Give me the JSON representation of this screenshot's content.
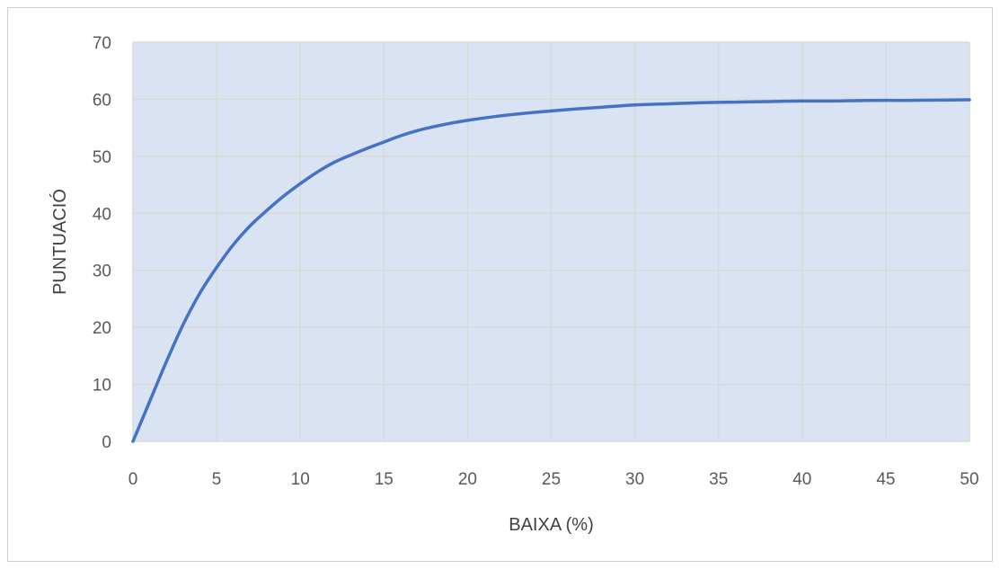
{
  "chart_data": {
    "type": "line",
    "title": "",
    "xlabel": "BAIXA (%)",
    "ylabel": "PUNTUACIÓ",
    "xlim": [
      0,
      50
    ],
    "ylim": [
      0,
      70
    ],
    "x_ticks": [
      0,
      5,
      10,
      15,
      20,
      25,
      30,
      35,
      40,
      45,
      50
    ],
    "y_ticks": [
      0,
      10,
      20,
      30,
      40,
      50,
      60,
      70
    ],
    "grid": true,
    "legend": "none",
    "plot_background": "#dae3f3",
    "gridline_color": "#d9d9d9",
    "series": [
      {
        "color": "#4472c4",
        "x": [
          0,
          1,
          2,
          3,
          4,
          5,
          6,
          7,
          8,
          9,
          10,
          11,
          12,
          13,
          14,
          15,
          16,
          17,
          18,
          19,
          20,
          22,
          24,
          26,
          28,
          30,
          32,
          34,
          36,
          38,
          40,
          42,
          44,
          46,
          48,
          50
        ],
        "y": [
          0,
          7,
          14,
          20.5,
          26,
          30.5,
          34.5,
          37.8,
          40.5,
          43,
          45.2,
          47.2,
          48.9,
          50.2,
          51.4,
          52.5,
          53.6,
          54.5,
          55.2,
          55.8,
          56.3,
          57.1,
          57.7,
          58.2,
          58.6,
          59.0,
          59.2,
          59.4,
          59.5,
          59.6,
          59.7,
          59.7,
          59.8,
          59.8,
          59.85,
          59.9
        ]
      }
    ]
  }
}
